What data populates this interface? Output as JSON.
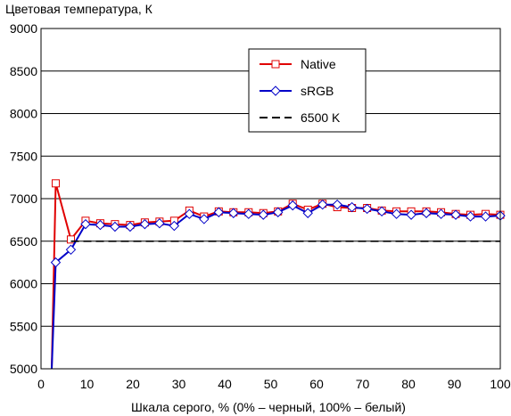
{
  "chart_data": {
    "type": "line",
    "title": "",
    "ylabel": "Цветовая температура, К",
    "xlabel": "Шкала серого, % (0% – черный, 100% – белый)",
    "xlim": [
      0,
      100
    ],
    "ylim": [
      5000,
      9000
    ],
    "xticks": [
      0,
      10,
      20,
      30,
      40,
      50,
      60,
      70,
      80,
      90,
      100
    ],
    "yticks": [
      5000,
      5500,
      6000,
      6500,
      7000,
      7500,
      8000,
      8500,
      9000
    ],
    "grid": "horizontal",
    "legend_position": "top-right",
    "series": [
      {
        "name": "Native",
        "color": "#e00000",
        "marker": "square",
        "x": [
          3.2,
          6.5,
          9.7,
          12.9,
          16.1,
          19.4,
          22.6,
          25.8,
          29.0,
          32.3,
          35.5,
          38.7,
          41.9,
          45.2,
          48.4,
          51.6,
          54.8,
          58.1,
          61.3,
          64.5,
          67.7,
          71.0,
          74.2,
          77.4,
          80.6,
          83.9,
          87.1,
          90.3,
          93.5,
          96.8,
          100.0
        ],
        "y": [
          7180,
          6520,
          6740,
          6710,
          6700,
          6690,
          6720,
          6730,
          6740,
          6860,
          6790,
          6850,
          6840,
          6840,
          6830,
          6850,
          6940,
          6870,
          6940,
          6900,
          6890,
          6890,
          6860,
          6850,
          6850,
          6850,
          6840,
          6820,
          6810,
          6820,
          6810
        ]
      },
      {
        "name": "sRGB",
        "color": "#0000c8",
        "marker": "diamond",
        "x": [
          3.2,
          6.5,
          9.7,
          12.9,
          16.1,
          19.4,
          22.6,
          25.8,
          29.0,
          32.3,
          35.5,
          38.7,
          41.9,
          45.2,
          48.4,
          51.6,
          54.8,
          58.1,
          61.3,
          64.5,
          67.7,
          71.0,
          74.2,
          77.4,
          80.6,
          83.9,
          87.1,
          90.3,
          93.5,
          96.8,
          100.0
        ],
        "y": [
          6250,
          6400,
          6700,
          6690,
          6670,
          6670,
          6700,
          6710,
          6680,
          6820,
          6760,
          6840,
          6830,
          6820,
          6810,
          6840,
          6920,
          6830,
          6930,
          6930,
          6900,
          6880,
          6850,
          6820,
          6810,
          6830,
          6820,
          6810,
          6790,
          6790,
          6800
        ]
      },
      {
        "name": "6500 K",
        "color": "#000000",
        "marker": "none",
        "dashed": true,
        "x": [
          6.5,
          100
        ],
        "y": [
          6500,
          6500
        ]
      }
    ]
  }
}
